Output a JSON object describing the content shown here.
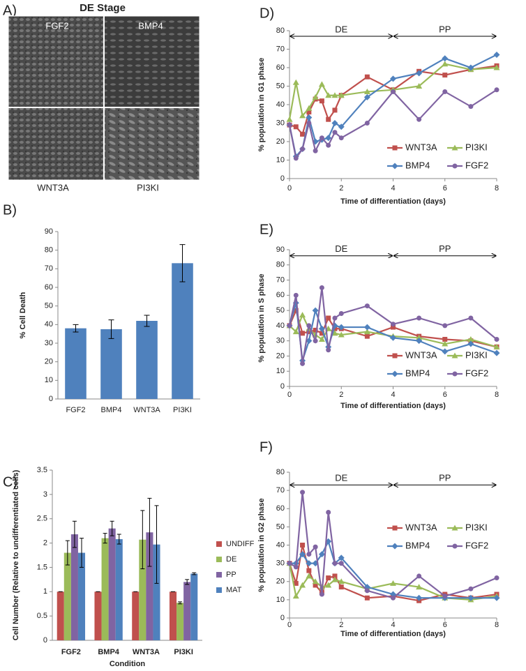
{
  "image_panel": {
    "panel_label": "A)",
    "title": "DE Stage",
    "images": [
      "FGF2",
      "BMP4",
      "WNT3A",
      "PI3KI"
    ]
  },
  "chart_data": [
    {
      "type": "bar",
      "panel_label": "B)",
      "ylabel": "% Cell Death",
      "categories": [
        "FGF2",
        "BMP4",
        "WNT3A",
        "PI3KI"
      ],
      "values": [
        38,
        37.5,
        42,
        73
      ],
      "errors": [
        2,
        5,
        3,
        10
      ],
      "color": "#4f81bd",
      "ylim": [
        0,
        90
      ],
      "yticks": [
        0,
        10,
        20,
        30,
        40,
        50,
        60,
        70,
        80,
        90
      ]
    },
    {
      "type": "grouped_bar",
      "panel_label": "C)",
      "ylabel": "Cell Number (Relative to undifferentiated cells)",
      "xlabel": "Condition",
      "categories": [
        "FGF2",
        "BMP4",
        "WNT3A",
        "PI3KI"
      ],
      "series": [
        {
          "name": "UNDIFF",
          "color": "#c0504d",
          "values": [
            1,
            1,
            1,
            1
          ],
          "errors": [
            0,
            0,
            0,
            0
          ]
        },
        {
          "name": "DE",
          "color": "#9bbb59",
          "values": [
            1.8,
            2.1,
            2.07,
            0.77
          ],
          "errors": [
            0.25,
            0.1,
            0.6,
            0.02
          ]
        },
        {
          "name": "PP",
          "color": "#8064a2",
          "values": [
            2.18,
            2.3,
            2.22,
            1.2
          ],
          "errors": [
            0.27,
            0.15,
            0.7,
            0.05
          ]
        },
        {
          "name": "MAT",
          "color": "#4f81bd",
          "values": [
            1.8,
            2.08,
            1.97,
            1.37
          ],
          "errors": [
            0.3,
            0.1,
            0.8,
            0.02
          ]
        }
      ],
      "ylim": [
        0,
        3.5
      ],
      "yticks": [
        0,
        0.5,
        1,
        1.5,
        2,
        2.5,
        3,
        3.5
      ],
      "legend": "right"
    },
    {
      "type": "line",
      "panel_label": "D)",
      "ylabel": "% population in G1 phase",
      "xlabel": "Time of differentiation (days)",
      "x": [
        0,
        0.25,
        0.5,
        0.75,
        1,
        1.25,
        1.5,
        1.75,
        2,
        3,
        4,
        5,
        6,
        7,
        8
      ],
      "series": [
        {
          "name": "WNT3A",
          "color": "#c0504d",
          "marker": "square",
          "values": [
            29,
            28,
            24,
            36,
            43,
            42,
            32,
            37,
            45,
            55,
            48,
            58,
            56,
            59,
            61
          ]
        },
        {
          "name": "PI3KI",
          "color": "#9bbb59",
          "marker": "triangle",
          "values": [
            32,
            52,
            34,
            38,
            44,
            51,
            45,
            45,
            45,
            47,
            48,
            50,
            62,
            59,
            60
          ]
        },
        {
          "name": "BMP4",
          "color": "#4f81bd",
          "marker": "diamond",
          "values": [
            29,
            12,
            16,
            33,
            20,
            21,
            22,
            30,
            28,
            44,
            54,
            57,
            65,
            60,
            67
          ]
        },
        {
          "name": "FGF2",
          "color": "#8064a2",
          "marker": "circle",
          "values": [
            29,
            11,
            16,
            30,
            15,
            22,
            18,
            25,
            22,
            30,
            47,
            32,
            47,
            39,
            48
          ]
        }
      ],
      "xlim": [
        0,
        8
      ],
      "xticks": [
        0,
        2,
        4,
        6,
        8
      ],
      "ylim": [
        0,
        80
      ],
      "yticks": [
        0,
        10,
        20,
        30,
        40,
        50,
        60,
        70,
        80
      ],
      "phases": [
        {
          "label": "DE",
          "start": 0,
          "end": 4,
          "y": 77
        },
        {
          "label": "PP",
          "start": 4,
          "end": 8,
          "y": 77
        }
      ],
      "legend": "lower right"
    },
    {
      "type": "line",
      "panel_label": "E)",
      "ylabel": "% population in S phase",
      "xlabel": "Time of differentiation (days)",
      "x": [
        0,
        0.25,
        0.5,
        0.75,
        1,
        1.25,
        1.5,
        1.75,
        2,
        3,
        4,
        5,
        6,
        7,
        8
      ],
      "series": [
        {
          "name": "WNT3A",
          "color": "#c0504d",
          "marker": "square",
          "values": [
            40,
            50,
            35,
            36,
            37,
            35,
            45,
            38,
            38,
            33,
            39,
            33,
            31,
            30,
            26
          ]
        },
        {
          "name": "PI3KI",
          "color": "#9bbb59",
          "marker": "triangle",
          "values": [
            40,
            36,
            47,
            38,
            34,
            31,
            38,
            35,
            34,
            36,
            33,
            32,
            28,
            31,
            26
          ]
        },
        {
          "name": "BMP4",
          "color": "#4f81bd",
          "marker": "diamond",
          "values": [
            40,
            55,
            17,
            30,
            50,
            38,
            26,
            40,
            39,
            39,
            32,
            30,
            23,
            28,
            22
          ]
        },
        {
          "name": "FGF2",
          "color": "#8064a2",
          "marker": "circle",
          "values": [
            40,
            60,
            15,
            40,
            30,
            65,
            24,
            45,
            48,
            53,
            41,
            45,
            40,
            45,
            31
          ]
        }
      ],
      "xlim": [
        0,
        8
      ],
      "xticks": [
        0,
        2,
        4,
        6,
        8
      ],
      "ylim": [
        0,
        90
      ],
      "yticks": [
        0,
        10,
        20,
        30,
        40,
        50,
        60,
        70,
        80,
        90
      ],
      "phases": [
        {
          "label": "DE",
          "start": 0,
          "end": 4,
          "y": 86
        },
        {
          "label": "PP",
          "start": 4,
          "end": 8,
          "y": 86
        }
      ],
      "legend": "lower right"
    },
    {
      "type": "line",
      "panel_label": "F)",
      "ylabel": "% population in G2 phase",
      "xlabel": "Time of differentiation (days)",
      "x": [
        0,
        0.25,
        0.5,
        0.75,
        1,
        1.25,
        1.5,
        1.75,
        2,
        3,
        4,
        5,
        6,
        7,
        8
      ],
      "series": [
        {
          "name": "WNT3A",
          "color": "#c0504d",
          "marker": "square",
          "values": [
            30,
            19,
            40,
            26,
            18,
            14,
            22,
            23,
            17,
            11,
            12,
            9.5,
            13,
            11,
            13
          ]
        },
        {
          "name": "PI3KI",
          "color": "#9bbb59",
          "marker": "triangle",
          "values": [
            30,
            12,
            18,
            23,
            20,
            17,
            18,
            21,
            20,
            16,
            19,
            17,
            11,
            10,
            12
          ]
        },
        {
          "name": "BMP4",
          "color": "#4f81bd",
          "marker": "diamond",
          "values": [
            30,
            30,
            35,
            30,
            30,
            35,
            42,
            30,
            33,
            17,
            13,
            11,
            11,
            11,
            11
          ]
        },
        {
          "name": "FGF2",
          "color": "#8064a2",
          "marker": "circle",
          "values": [
            30,
            28,
            69,
            35,
            39,
            13,
            58,
            30,
            30,
            15,
            11,
            23,
            12,
            16,
            22
          ]
        }
      ],
      "xlim": [
        0,
        8
      ],
      "xticks": [
        0,
        2,
        4,
        6,
        8
      ],
      "ylim": [
        0,
        80
      ],
      "yticks": [
        0,
        10,
        20,
        30,
        40,
        50,
        60,
        70,
        80
      ],
      "phases": [
        {
          "label": "DE",
          "start": 0,
          "end": 4,
          "y": 73
        },
        {
          "label": "PP",
          "start": 4,
          "end": 8,
          "y": 73
        }
      ],
      "legend": "upper right"
    }
  ]
}
